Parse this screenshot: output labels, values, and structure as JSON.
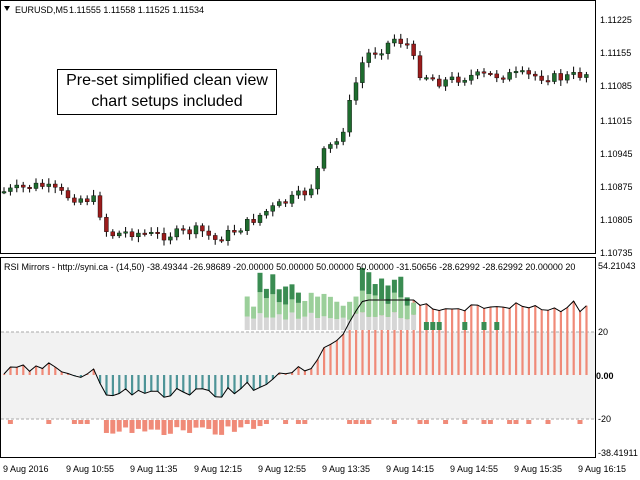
{
  "price_chart": {
    "header_symbol": "EURUSD,M5",
    "header_ohlc": "1.11555 1.11558 1.11525 1.11534",
    "price_labels": [
      "1.11225",
      "1.11155",
      "1.11085",
      "1.11015",
      "1.10945",
      "1.10875",
      "1.10805",
      "1.10735"
    ],
    "overlay_text_line1": "Pre-set simplified clean view",
    "overlay_text_line2": "chart setups included",
    "bull_color": "#1e6b2e",
    "bear_color": "#9b1c1c"
  },
  "indicator": {
    "header_text": "RSI Mirrors - http://syni.ca - (14,50) -38.49344 -26.98689 -20.00000 50.00000 50.00000 50.00000 -31.50656 -28.62992 -28.62992 20.00000 20",
    "scale_labels": [
      "54.21043",
      "20",
      "0.00",
      "-20",
      "-38.41911"
    ],
    "zone_color": "#f2f2f2",
    "salmon_color": "#f08a78",
    "teal_color": "#4e9497",
    "green_color": "#3a8c52",
    "light_green_color": "#9bcf9a",
    "grey_color": "#d6d6d6"
  },
  "time_axis": {
    "labels": [
      "9 Aug 2016",
      "9 Aug 10:55",
      "9 Aug 11:35",
      "9 Aug 12:15",
      "9 Aug 12:55",
      "9 Aug 13:35",
      "9 Aug 14:15",
      "9 Aug 14:55",
      "9 Aug 15:35",
      "9 Aug 16:15"
    ]
  },
  "icons": [
    "dropdown-triangle-icon"
  ]
}
